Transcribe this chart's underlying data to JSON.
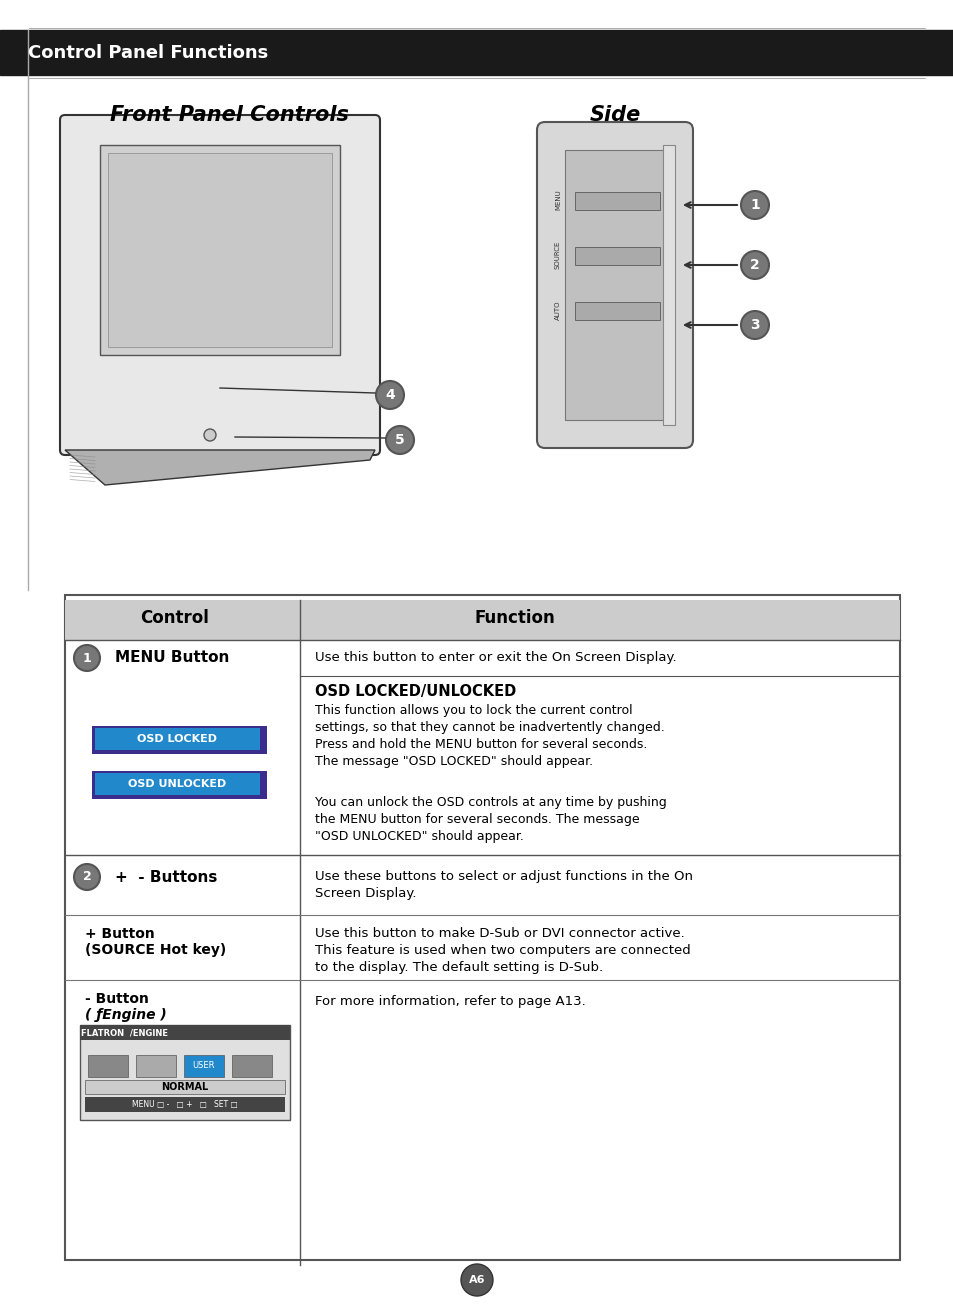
{
  "page_bg": "#ffffff",
  "header_bg": "#1a1a1a",
  "header_text": "Control Panel Functions",
  "header_text_color": "#ffffff",
  "header_font_size": 14,
  "front_panel_title": "Front Panel Controls",
  "side_title": "Side",
  "table_header_bg": "#cccccc",
  "table_border_color": "#555555",
  "osd_locked_bg": "#2288cc",
  "osd_locked_border": "#3a2d8c",
  "osd_unlocked_bg": "#2288cc",
  "osd_unlocked_border": "#3a2d8c",
  "circle_bg": "#777777",
  "circle_text_color": "#ffffff",
  "row1_control": "MENU Button",
  "row1_func1": "Use this button to enter or exit the On Screen Display.",
  "row1_func2_title": "OSD LOCKED/UNLOCKED",
  "row2_control": "+  - Buttons",
  "row2_func": "Use these buttons to select or adjust functions in the On\nScreen Display.",
  "row3_control_line1": "+ Button",
  "row3_control_line2": "(SOURCE Hot key)",
  "row3_func": "Use this button to make D-Sub or DVI connector active.\nThis feature is used when two computers are connected\nto the display. The default setting is D-Sub.",
  "row4_control_line1": "- Button",
  "row4_control_line2": "( ƒEngine )",
  "row4_func": "For more information, refer to page A13.",
  "page_number": "A6",
  "margin_line_color": "#aaaaaa"
}
